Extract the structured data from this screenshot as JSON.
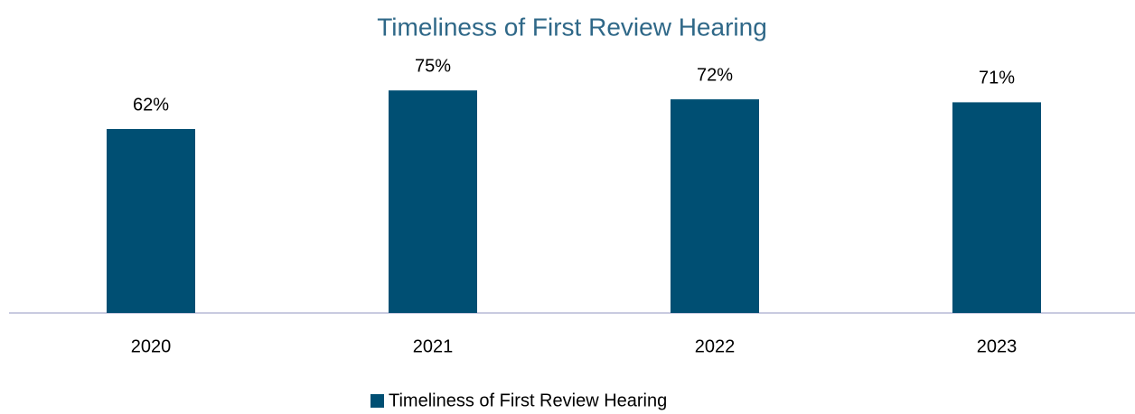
{
  "chart_data": {
    "type": "bar",
    "title": "Timeliness of First Review Hearing",
    "categories": [
      "2020",
      "2021",
      "2022",
      "2023"
    ],
    "series": [
      {
        "name": "Timeliness of First Review Hearing",
        "color": "#004f73",
        "values": [
          62,
          75,
          72,
          71
        ],
        "value_labels": [
          "62%",
          "75%",
          "72%",
          "71%"
        ]
      }
    ],
    "ylim": [
      0,
      100
    ],
    "legend": "bottom"
  }
}
